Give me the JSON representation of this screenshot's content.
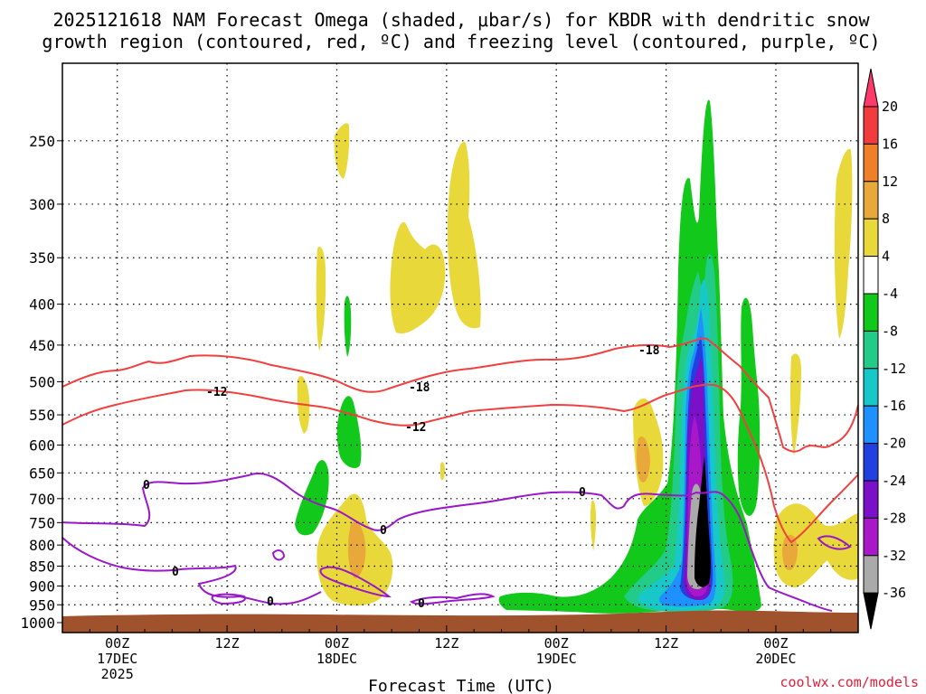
{
  "chart_data": {
    "type": "heatmap",
    "title_line1": "2025121618 NAM Forecast Omega (shaded, μbar/s) for KBDR with dendritic snow",
    "title_line2": "growth region (contoured, red, ºC) and freezing level (contoured, purple, ºC)",
    "xlabel": "Forecast Time (UTC)",
    "ylabel": "",
    "y_ticks": [
      250,
      300,
      350,
      400,
      450,
      500,
      550,
      600,
      650,
      700,
      750,
      800,
      850,
      900,
      950,
      1000
    ],
    "y_range_hpa": [
      1000,
      200
    ],
    "x_range_hours": [
      -6,
      81
    ],
    "x_ticks": [
      {
        "hour": 0,
        "line1": "00Z",
        "line2": "17DEC",
        "line3": "2025"
      },
      {
        "hour": 12,
        "line1": "12Z",
        "line2": "",
        "line3": ""
      },
      {
        "hour": 24,
        "line1": "00Z",
        "line2": "18DEC",
        "line3": ""
      },
      {
        "hour": 36,
        "line1": "12Z",
        "line2": "",
        "line3": ""
      },
      {
        "hour": 48,
        "line1": "00Z",
        "line2": "19DEC",
        "line3": ""
      },
      {
        "hour": 60,
        "line1": "12Z",
        "line2": "",
        "line3": ""
      },
      {
        "hour": 72,
        "line1": "00Z",
        "line2": "20DEC",
        "line3": ""
      }
    ],
    "colorbar": {
      "labels": [
        "20",
        "16",
        "12",
        "8",
        "4",
        "-4",
        "-8",
        "-12",
        "-16",
        "-20",
        "-24",
        "-28",
        "-32",
        "-36"
      ],
      "colors": [
        "#ff3a6a",
        "#f03c3c",
        "#f07f2a",
        "#e8a83a",
        "#e8d83a",
        "#ffffff",
        "#12c81a",
        "#22cc88",
        "#18c8c8",
        "#1e90ff",
        "#2040e0",
        "#7a10c8",
        "#a818c8",
        "#aaaaaa",
        "#000000"
      ]
    },
    "contour_labels": {
      "red_upper": "-18",
      "red_upper_mid": "-18",
      "red_lower": "-12",
      "red_lower_left": "-12",
      "purple": "0"
    },
    "legend": "none",
    "grid": true
  },
  "credit": "coolwx.com/models"
}
